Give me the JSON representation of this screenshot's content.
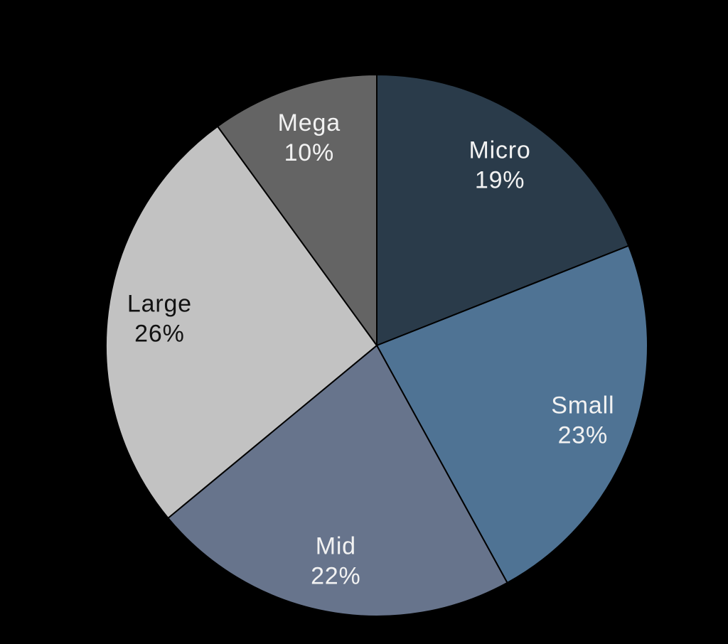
{
  "chart_data": {
    "type": "pie",
    "title": "",
    "categories": [
      "Micro",
      "Small",
      "Mid",
      "Large",
      "Mega"
    ],
    "values": [
      19,
      23,
      22,
      26,
      10
    ],
    "unit": "%",
    "slice_colors": [
      "#2a3b4a",
      "#4f7394",
      "#67748c",
      "#c2c2c2",
      "#646464"
    ],
    "label_colors": [
      "#f2f2f2",
      "#f2f2f2",
      "#f2f2f2",
      "#121212",
      "#f2f2f2"
    ],
    "slice_border_color": "#000000",
    "background_color": "#000000",
    "start_angle_deg": 0,
    "direction": "clockwise",
    "legend": "none",
    "labels_on_slices": true,
    "label_format": "name + percent"
  }
}
